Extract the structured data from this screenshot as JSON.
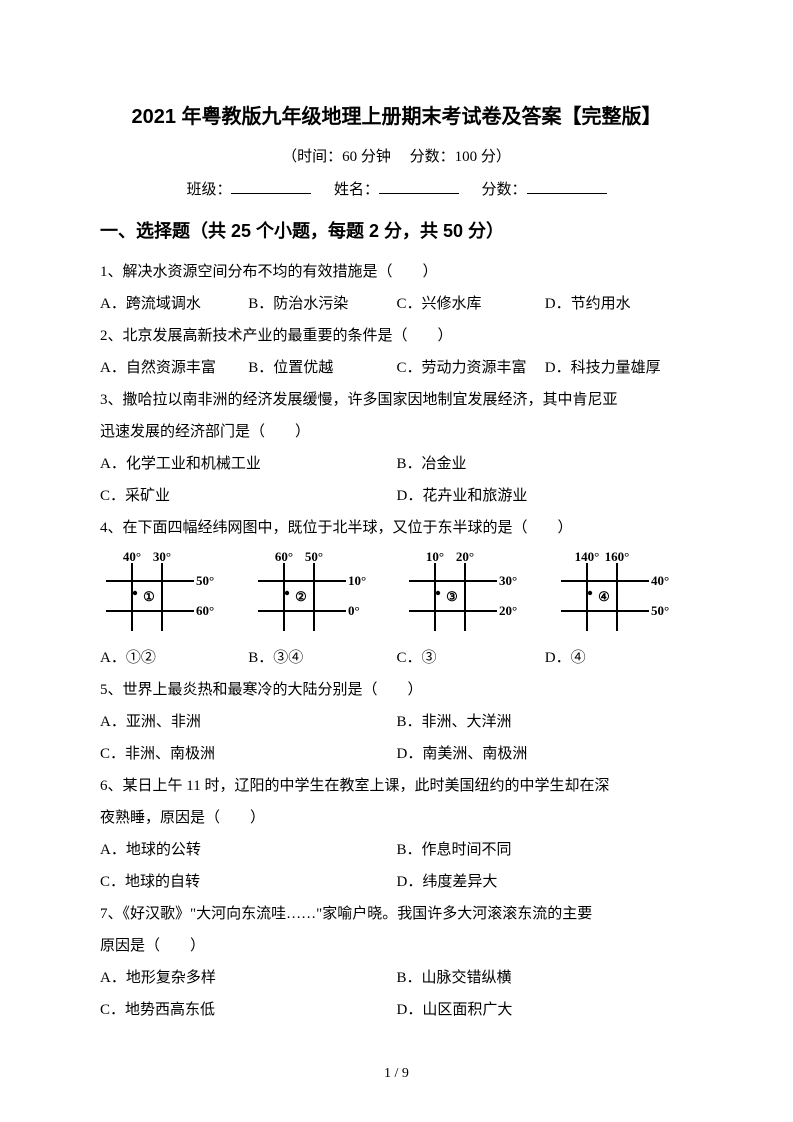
{
  "title": "2021 年粤教版九年级地理上册期末考试卷及答案【完整版】",
  "subtitle_left": "（时间：60 分钟",
  "subtitle_right": "分数：100 分）",
  "info": {
    "class_label": "班级：",
    "name_label": "姓名：",
    "score_label": "分数："
  },
  "section1_header": "一、选择题（共 25 个小题，每题 2 分，共 50 分）",
  "q1": {
    "text": "1、解决水资源空间分布不均的有效措施是（　　）",
    "a": "A．跨流域调水",
    "b": "B．防治水污染",
    "c": "C．兴修水库",
    "d": "D．节约用水"
  },
  "q2": {
    "text": "2、北京发展高新技术产业的最重要的条件是（　　）",
    "a": "A．自然资源丰富",
    "b": "B．位置优越",
    "c": "C．劳动力资源丰富",
    "d": "D．科技力量雄厚"
  },
  "q3": {
    "line1": "3、撒哈拉以南非洲的经济发展缓慢，许多国家因地制宜发展经济，其中肯尼亚",
    "line2": "迅速发展的经济部门是（　　）",
    "a": "A．化学工业和机械工业",
    "b": "B．冶金业",
    "c": "C．采矿业",
    "d": "D．花卉业和旅游业"
  },
  "q4": {
    "text": "4、在下面四幅经纬网图中，既位于北半球，又位于东半球的是（　　）",
    "a": "A．①②",
    "b": "B．③④",
    "c": "C．③",
    "d": "D．④"
  },
  "diagrams": {
    "d1": {
      "tl": "40°",
      "tr": "30°",
      "r1": "50°",
      "r2": "60°",
      "label": "①"
    },
    "d2": {
      "tl": "60°",
      "tr": "50°",
      "r1": "10°",
      "r2": "0°",
      "label": "②"
    },
    "d3": {
      "tl": "10°",
      "tr": "20°",
      "r1": "30°",
      "r2": "20°",
      "label": "③"
    },
    "d4": {
      "tl": "140°",
      "tr": "160°",
      "r1": "40°",
      "r2": "50°",
      "label": "④"
    }
  },
  "q5": {
    "text": "5、世界上最炎热和最寒冷的大陆分别是（　　）",
    "a": "A．亚洲、非洲",
    "b": "B．非洲、大洋洲",
    "c": "C．非洲、南极洲",
    "d": "D．南美洲、南极洲"
  },
  "q6": {
    "line1": "6、某日上午 11 时，辽阳的中学生在教室上课，此时美国纽约的中学生却在深",
    "line2": "夜熟睡，原因是（　　）",
    "a": "A．地球的公转",
    "b": "B．作息时间不同",
    "c": "C．地球的自转",
    "d": "D．纬度差异大"
  },
  "q7": {
    "line1": "7、《好汉歌》\"大河向东流哇……\"家喻户晓。我国许多大河滚滚东流的主要",
    "line2": "原因是（　　）",
    "a": "A．地形复杂多样",
    "b": "B．山脉交错纵横",
    "c": "C．地势西高东低",
    "d": "D．山区面积广大"
  },
  "page_num": "1 / 9",
  "style": {
    "grid_stroke": "#000000",
    "grid_stroke_width": 2,
    "label_fontsize": 13,
    "dot_radius": 2.2
  }
}
